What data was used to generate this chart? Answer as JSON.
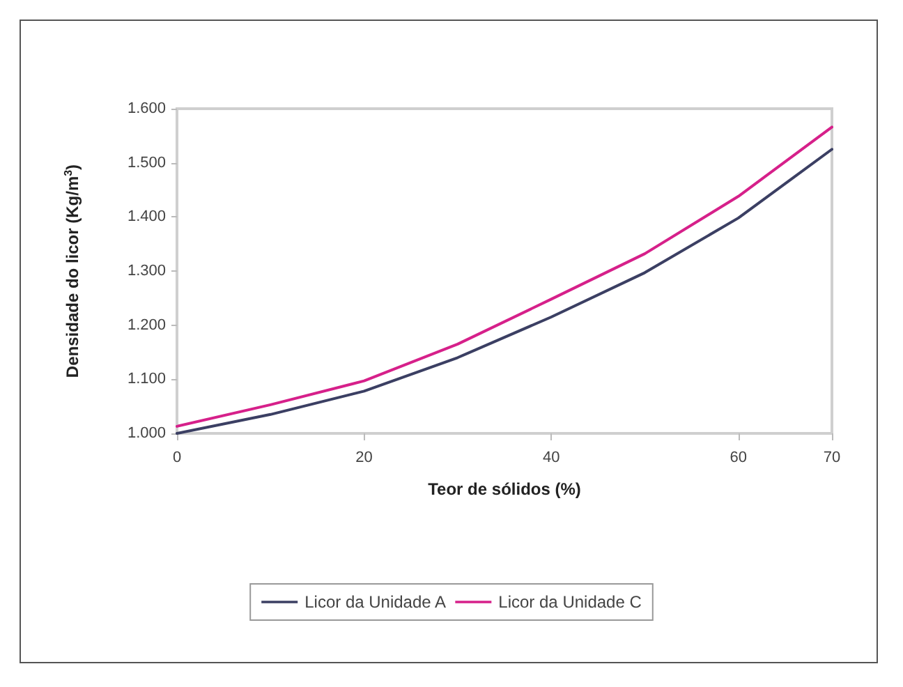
{
  "chart_data": {
    "type": "line",
    "xlabel": "Teor de sólidos (%)",
    "ylabel": "Densidade do licor (Kg/m$^{3}$)",
    "x": [
      0,
      10,
      20,
      30,
      40,
      50,
      60,
      70
    ],
    "series": [
      {
        "name": "Licor da Unidade A",
        "color": "#3b3f63",
        "values": [
          1000,
          1035,
          1078,
          1140,
          1215,
          1297,
          1398,
          1525
        ]
      },
      {
        "name": "Licor da Unidade C",
        "color": "#d6208a",
        "values": [
          1013,
          1053,
          1097,
          1165,
          1248,
          1332,
          1438,
          1566
        ]
      }
    ],
    "xlim": [
      0,
      70
    ],
    "xticks": [
      0,
      20,
      40,
      60,
      70
    ],
    "ylim": [
      1000,
      1600
    ],
    "yticks": [
      {
        "value": 1000,
        "label": "1.000"
      },
      {
        "value": 1100,
        "label": "1.100"
      },
      {
        "value": 1200,
        "label": "1.200"
      },
      {
        "value": 1300,
        "label": "1.300"
      },
      {
        "value": 1400,
        "label": "1.400"
      },
      {
        "value": 1500,
        "label": "1.500"
      },
      {
        "value": 1600,
        "label": "1.600"
      }
    ],
    "grid": false,
    "legend": "bottom",
    "marker": "none",
    "line_style": "solid"
  }
}
